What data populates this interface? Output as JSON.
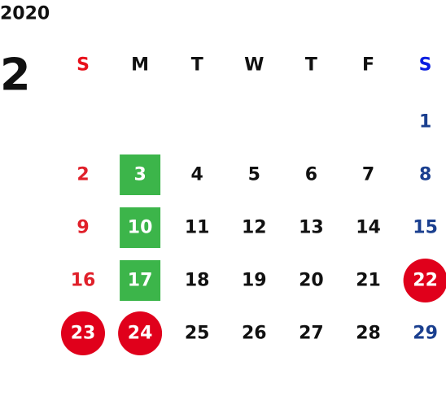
{
  "year": "2020",
  "month": "2",
  "weekdays": [
    "S",
    "M",
    "T",
    "W",
    "T",
    "F",
    "S"
  ],
  "colors": {
    "text": "#111111",
    "sunday_header": "#e8101a",
    "saturday_header": "#0a1ee0",
    "sunday": "#e0202a",
    "saturday": "#1a3f8f",
    "square": "#3cb54a",
    "circle": "#e0001b",
    "marked_text": "#ffffff"
  },
  "weeks": [
    [
      null,
      null,
      null,
      null,
      null,
      null,
      {
        "day": 1
      }
    ],
    [
      {
        "day": 2
      },
      {
        "day": 3,
        "highlight": "square"
      },
      {
        "day": 4
      },
      {
        "day": 5
      },
      {
        "day": 6
      },
      {
        "day": 7
      },
      {
        "day": 8
      }
    ],
    [
      {
        "day": 9
      },
      {
        "day": 10,
        "highlight": "square"
      },
      {
        "day": 11
      },
      {
        "day": 12
      },
      {
        "day": 13
      },
      {
        "day": 14
      },
      {
        "day": 15
      }
    ],
    [
      {
        "day": 16
      },
      {
        "day": 17,
        "highlight": "square"
      },
      {
        "day": 18
      },
      {
        "day": 19
      },
      {
        "day": 20
      },
      {
        "day": 21
      },
      {
        "day": 22,
        "highlight": "circle"
      }
    ],
    [
      {
        "day": 23,
        "highlight": "circle"
      },
      {
        "day": 24,
        "highlight": "circle"
      },
      {
        "day": 25
      },
      {
        "day": 26
      },
      {
        "day": 27
      },
      {
        "day": 28
      },
      {
        "day": 29
      }
    ]
  ]
}
